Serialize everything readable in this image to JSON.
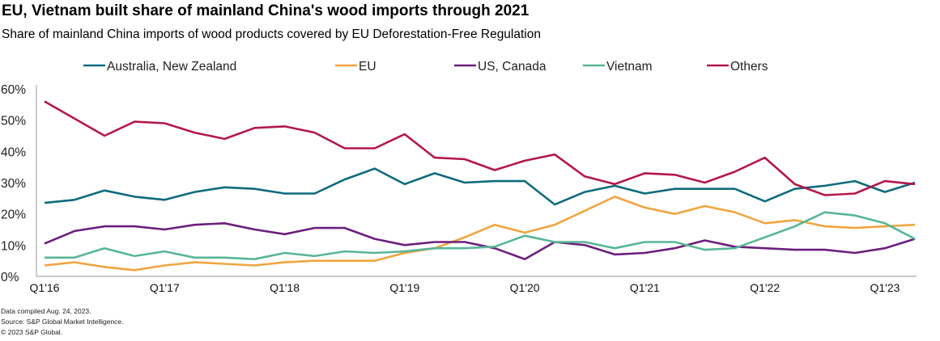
{
  "chart_data": {
    "type": "line",
    "title": "EU, Vietnam built share of mainland China's wood imports through 2021",
    "subtitle": "Share of mainland China imports of wood products covered by EU Deforestation-Free Regulation",
    "xlabel": "",
    "ylabel": "",
    "ylim": [
      0,
      60
    ],
    "yticks": [
      "0%",
      "10%",
      "20%",
      "30%",
      "40%",
      "50%",
      "60%"
    ],
    "xtick_labels": [
      "Q1'16",
      "Q1'17",
      "Q1'18",
      "Q1'19",
      "Q1'20",
      "Q1'21",
      "Q1'22",
      "Q1'23"
    ],
    "x": [
      "Q1'16",
      "Q2'16",
      "Q3'16",
      "Q4'16",
      "Q1'17",
      "Q2'17",
      "Q3'17",
      "Q4'17",
      "Q1'18",
      "Q2'18",
      "Q3'18",
      "Q4'18",
      "Q1'19",
      "Q2'19",
      "Q3'19",
      "Q4'19",
      "Q1'20",
      "Q2'20",
      "Q3'20",
      "Q4'20",
      "Q1'21",
      "Q2'21",
      "Q3'21",
      "Q4'21",
      "Q1'22",
      "Q2'22",
      "Q3'22",
      "Q4'22",
      "Q1'23",
      "Q2'23"
    ],
    "legend_position": "top",
    "grid": false,
    "series": [
      {
        "name": "Australia, New Zealand",
        "color": "#0e6b7d",
        "values": [
          23.5,
          24.5,
          27.5,
          25.5,
          24.5,
          27,
          28.5,
          28,
          26.5,
          26.5,
          31,
          34.5,
          29.5,
          33,
          30,
          30.5,
          30.5,
          23,
          27,
          29,
          26.5,
          28,
          28,
          28,
          24,
          28,
          29,
          30.5,
          27,
          30
        ]
      },
      {
        "name": "EU",
        "color": "#f0a540",
        "values": [
          3.5,
          4.5,
          3,
          2,
          3.5,
          4.5,
          4,
          3.5,
          4.5,
          5,
          5,
          5,
          7.5,
          9,
          12.5,
          16.5,
          14,
          16.5,
          21,
          25.5,
          22,
          20,
          22.5,
          20.5,
          17,
          18,
          16,
          15.5,
          16,
          16.5
        ]
      },
      {
        "name": "US, Canada",
        "color": "#6b1f7c",
        "values": [
          10.5,
          14.5,
          16,
          16,
          15,
          16.5,
          17,
          15,
          13.5,
          15.5,
          15.5,
          12,
          10,
          11,
          11,
          9,
          5.5,
          11,
          10,
          7,
          7.5,
          9,
          11.5,
          9.5,
          9,
          8.5,
          8.5,
          7.5,
          9,
          12
        ]
      },
      {
        "name": "Vietnam",
        "color": "#58b697",
        "values": [
          6,
          6,
          9,
          6.5,
          8,
          6,
          6,
          5.5,
          7.5,
          6.5,
          8,
          7.5,
          8,
          9,
          9,
          9.5,
          13,
          11,
          11,
          9,
          11,
          11,
          8.5,
          9,
          12.5,
          16,
          20.5,
          19.5,
          17,
          12
        ]
      },
      {
        "name": "Others",
        "color": "#b3174e",
        "values": [
          56,
          50.5,
          45,
          49.5,
          49,
          46,
          44,
          47.5,
          48,
          46,
          41,
          41,
          45.5,
          38,
          37.5,
          34,
          37,
          39,
          32,
          29.5,
          33,
          32.5,
          30,
          33.5,
          38,
          29.5,
          26,
          26.5,
          30.5,
          29.5
        ]
      }
    ]
  },
  "footer": [
    "Data compiled Aug. 24, 2023.",
    "Source: S&P Global Market Intelligence.",
    "© 2023 S&P Global."
  ]
}
